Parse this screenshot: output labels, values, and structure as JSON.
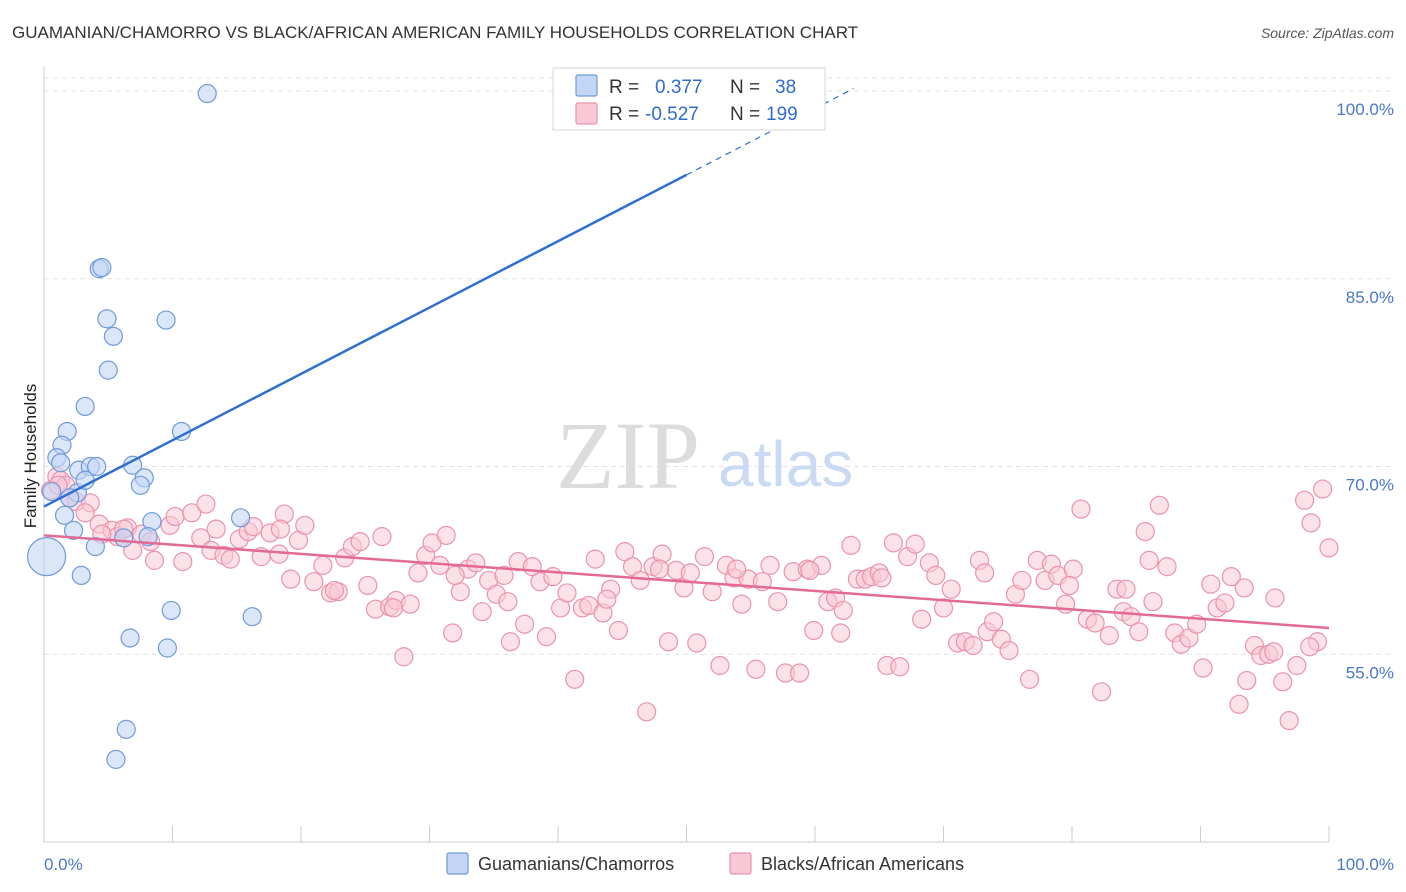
{
  "chart_data": {
    "type": "scatter",
    "title": "GUAMANIAN/CHAMORRO VS BLACK/AFRICAN AMERICAN FAMILY HOUSEHOLDS CORRELATION CHART",
    "source": "Source: ZipAtlas.com",
    "ylabel": "Family Households",
    "xlim": [
      0,
      100
    ],
    "ylim": [
      40,
      102
    ],
    "y_ticks": [
      {
        "value": 100,
        "label": "100.0%"
      },
      {
        "value": 85,
        "label": "85.0%"
      },
      {
        "value": 70,
        "label": "70.0%"
      },
      {
        "value": 55,
        "label": "55.0%"
      }
    ],
    "x_tick_labels": {
      "left": "0.0%",
      "right": "100.0%"
    },
    "watermark": {
      "zip": "ZIP",
      "atlas": "atlas"
    },
    "legend": {
      "rows": [
        {
          "r_label": "R =",
          "r_value": "0.377",
          "n_label": "N =",
          "n_value": "38"
        },
        {
          "r_label": "R =",
          "r_value": "-0.527",
          "n_label": "N =",
          "n_value": "199"
        }
      ]
    },
    "colors": {
      "guam_fill": "#c3d6f5",
      "guam_stroke": "#6f9bd8",
      "guam_line": "#2e6fd0",
      "black_fill": "#f8c8d6",
      "black_stroke": "#ea93ae",
      "black_line": "#e26a93",
      "grid": "#e3e3e3",
      "axis": "#cccccc"
    },
    "series": [
      {
        "name": "Guamanians/Chamorros",
        "trend": {
          "x0": 0,
          "y0": 66.8,
          "x1": 50,
          "y1": 93.3,
          "dash_to_x": 63,
          "dash_to_y": 100.2
        },
        "points": [
          [
            12.7,
            99.8
          ],
          [
            4.3,
            85.8
          ],
          [
            4.5,
            85.9
          ],
          [
            4.9,
            81.8
          ],
          [
            5.4,
            80.4
          ],
          [
            9.5,
            81.7
          ],
          [
            5.0,
            77.7
          ],
          [
            3.2,
            74.8
          ],
          [
            10.7,
            72.8
          ],
          [
            1.8,
            72.8
          ],
          [
            1.4,
            71.7
          ],
          [
            1.0,
            70.7
          ],
          [
            1.3,
            70.3
          ],
          [
            2.7,
            69.7
          ],
          [
            3.6,
            70.0
          ],
          [
            4.1,
            70.0
          ],
          [
            6.9,
            70.1
          ],
          [
            7.8,
            69.1
          ],
          [
            7.5,
            68.5
          ],
          [
            2.6,
            67.9
          ],
          [
            0.6,
            68.0
          ],
          [
            2.0,
            67.5
          ],
          [
            1.6,
            66.1
          ],
          [
            15.3,
            65.9
          ],
          [
            8.4,
            65.6
          ],
          [
            2.3,
            64.9
          ],
          [
            6.2,
            64.3
          ],
          [
            4.0,
            63.6
          ],
          [
            0.2,
            62.8
          ],
          [
            2.9,
            61.3
          ],
          [
            9.9,
            58.5
          ],
          [
            16.2,
            58.0
          ],
          [
            6.7,
            56.3
          ],
          [
            9.6,
            55.5
          ],
          [
            6.4,
            49.0
          ],
          [
            5.6,
            46.6
          ],
          [
            3.2,
            68.9
          ],
          [
            8.1,
            64.4
          ]
        ],
        "big_point": [
          0.2,
          62.8
        ]
      },
      {
        "name": "Blacks/African Americans",
        "trend": {
          "x0": 0,
          "y0": 64.5,
          "x1": 100,
          "y1": 57.1
        },
        "points": [
          [
            1.0,
            69.2
          ],
          [
            1.3,
            68.9
          ],
          [
            1.7,
            68.5
          ],
          [
            2.0,
            67.5
          ],
          [
            2.5,
            67.2
          ],
          [
            3.6,
            67.1
          ],
          [
            3.2,
            66.3
          ],
          [
            4.3,
            65.4
          ],
          [
            5.3,
            64.9
          ],
          [
            5.7,
            64.4
          ],
          [
            6.5,
            65.1
          ],
          [
            6.9,
            63.3
          ],
          [
            7.6,
            64.6
          ],
          [
            8.3,
            64.0
          ],
          [
            8.6,
            62.5
          ],
          [
            9.8,
            65.3
          ],
          [
            10.2,
            66.0
          ],
          [
            10.8,
            62.4
          ],
          [
            11.5,
            66.3
          ],
          [
            12.2,
            64.3
          ],
          [
            12.6,
            67.0
          ],
          [
            13.0,
            63.3
          ],
          [
            13.4,
            65.0
          ],
          [
            14.0,
            62.9
          ],
          [
            14.5,
            62.6
          ],
          [
            15.2,
            64.2
          ],
          [
            15.9,
            64.8
          ],
          [
            16.3,
            65.2
          ],
          [
            16.9,
            62.8
          ],
          [
            17.6,
            64.7
          ],
          [
            18.3,
            63.0
          ],
          [
            18.7,
            66.2
          ],
          [
            19.2,
            61.0
          ],
          [
            19.8,
            64.1
          ],
          [
            20.3,
            65.3
          ],
          [
            21.0,
            60.8
          ],
          [
            21.7,
            62.1
          ],
          [
            22.3,
            59.9
          ],
          [
            22.9,
            60.0
          ],
          [
            23.4,
            62.7
          ],
          [
            24.0,
            63.6
          ],
          [
            24.6,
            64.0
          ],
          [
            25.2,
            60.5
          ],
          [
            25.8,
            58.6
          ],
          [
            26.3,
            64.4
          ],
          [
            26.9,
            58.8
          ],
          [
            27.4,
            59.3
          ],
          [
            28.0,
            54.8
          ],
          [
            28.5,
            59.0
          ],
          [
            29.1,
            61.5
          ],
          [
            29.7,
            62.9
          ],
          [
            30.2,
            63.9
          ],
          [
            30.8,
            62.1
          ],
          [
            31.3,
            64.5
          ],
          [
            31.8,
            56.7
          ],
          [
            32.4,
            60.0
          ],
          [
            33.0,
            61.8
          ],
          [
            33.6,
            62.3
          ],
          [
            34.1,
            58.4
          ],
          [
            34.6,
            60.9
          ],
          [
            35.2,
            59.8
          ],
          [
            35.8,
            61.3
          ],
          [
            36.3,
            56.0
          ],
          [
            36.9,
            62.4
          ],
          [
            37.4,
            57.4
          ],
          [
            38.0,
            62.0
          ],
          [
            38.6,
            60.8
          ],
          [
            39.1,
            56.4
          ],
          [
            39.6,
            61.2
          ],
          [
            40.2,
            58.7
          ],
          [
            40.7,
            59.9
          ],
          [
            41.3,
            53.0
          ],
          [
            41.9,
            58.7
          ],
          [
            42.4,
            58.9
          ],
          [
            42.9,
            62.6
          ],
          [
            43.5,
            58.3
          ],
          [
            44.1,
            60.2
          ],
          [
            44.7,
            56.9
          ],
          [
            45.2,
            63.2
          ],
          [
            45.8,
            62.0
          ],
          [
            46.4,
            60.9
          ],
          [
            46.9,
            50.4
          ],
          [
            47.4,
            62.0
          ],
          [
            48.1,
            63.0
          ],
          [
            48.6,
            56.0
          ],
          [
            49.2,
            61.7
          ],
          [
            49.8,
            60.3
          ],
          [
            50.3,
            61.5
          ],
          [
            50.8,
            55.9
          ],
          [
            51.4,
            62.8
          ],
          [
            52.0,
            60.0
          ],
          [
            52.6,
            54.1
          ],
          [
            53.1,
            62.1
          ],
          [
            53.7,
            61.1
          ],
          [
            54.3,
            59.0
          ],
          [
            54.8,
            61.0
          ],
          [
            55.4,
            53.8
          ],
          [
            55.9,
            60.8
          ],
          [
            56.5,
            62.1
          ],
          [
            57.1,
            59.2
          ],
          [
            57.7,
            53.5
          ],
          [
            58.3,
            61.6
          ],
          [
            58.8,
            53.5
          ],
          [
            59.4,
            61.8
          ],
          [
            59.9,
            56.9
          ],
          [
            60.5,
            62.1
          ],
          [
            61.0,
            59.2
          ],
          [
            61.6,
            59.5
          ],
          [
            62.2,
            58.5
          ],
          [
            62.8,
            63.7
          ],
          [
            63.3,
            61.0
          ],
          [
            63.9,
            61.0
          ],
          [
            64.4,
            61.2
          ],
          [
            65.0,
            61.5
          ],
          [
            65.6,
            54.1
          ],
          [
            66.1,
            63.9
          ],
          [
            66.6,
            54.0
          ],
          [
            67.2,
            62.8
          ],
          [
            67.8,
            63.8
          ],
          [
            68.3,
            57.8
          ],
          [
            68.9,
            62.3
          ],
          [
            69.4,
            61.3
          ],
          [
            70.0,
            58.7
          ],
          [
            70.6,
            60.2
          ],
          [
            71.1,
            55.9
          ],
          [
            71.7,
            56.0
          ],
          [
            72.3,
            55.7
          ],
          [
            72.8,
            62.5
          ],
          [
            73.4,
            56.8
          ],
          [
            73.9,
            57.6
          ],
          [
            74.5,
            56.2
          ],
          [
            75.1,
            55.3
          ],
          [
            75.6,
            59.8
          ],
          [
            76.1,
            60.9
          ],
          [
            76.7,
            53.0
          ],
          [
            77.3,
            62.5
          ],
          [
            77.9,
            60.9
          ],
          [
            78.4,
            62.2
          ],
          [
            78.9,
            61.3
          ],
          [
            79.5,
            59.0
          ],
          [
            80.1,
            61.8
          ],
          [
            80.7,
            66.6
          ],
          [
            81.2,
            57.8
          ],
          [
            81.8,
            57.5
          ],
          [
            82.3,
            52.0
          ],
          [
            82.9,
            56.5
          ],
          [
            83.5,
            60.2
          ],
          [
            84.0,
            58.4
          ],
          [
            84.6,
            58.0
          ],
          [
            85.2,
            56.8
          ],
          [
            85.7,
            64.8
          ],
          [
            86.3,
            59.2
          ],
          [
            86.8,
            66.9
          ],
          [
            87.4,
            62.0
          ],
          [
            88.0,
            56.7
          ],
          [
            88.5,
            55.8
          ],
          [
            89.1,
            56.3
          ],
          [
            89.7,
            57.4
          ],
          [
            90.2,
            53.9
          ],
          [
            90.8,
            60.6
          ],
          [
            91.3,
            58.7
          ],
          [
            91.9,
            59.1
          ],
          [
            92.4,
            61.2
          ],
          [
            93.0,
            51.0
          ],
          [
            93.6,
            52.9
          ],
          [
            94.2,
            55.7
          ],
          [
            94.7,
            54.9
          ],
          [
            95.3,
            55.0
          ],
          [
            95.8,
            59.5
          ],
          [
            96.4,
            52.8
          ],
          [
            96.9,
            49.7
          ],
          [
            97.5,
            54.1
          ],
          [
            98.1,
            67.3
          ],
          [
            98.6,
            65.5
          ],
          [
            99.1,
            56.0
          ],
          [
            0.5,
            68.1
          ],
          [
            1.1,
            68.5
          ],
          [
            4.5,
            64.6
          ],
          [
            6.2,
            65.0
          ],
          [
            18.4,
            65.0
          ],
          [
            22.6,
            60.1
          ],
          [
            27.2,
            58.7
          ],
          [
            32.0,
            61.3
          ],
          [
            36.1,
            59.2
          ],
          [
            43.8,
            59.4
          ],
          [
            47.9,
            61.8
          ],
          [
            53.9,
            61.8
          ],
          [
            59.6,
            61.7
          ],
          [
            65.2,
            61.1
          ],
          [
            73.2,
            61.5
          ],
          [
            79.8,
            60.5
          ],
          [
            86.0,
            62.5
          ],
          [
            93.4,
            60.3
          ],
          [
            98.5,
            55.6
          ],
          [
            99.5,
            68.2
          ],
          [
            100.0,
            63.5
          ],
          [
            95.7,
            55.2
          ],
          [
            84.2,
            60.2
          ],
          [
            62.0,
            56.7
          ]
        ]
      }
    ],
    "bottom_legend": [
      {
        "label": "Guamanians/Chamorros"
      },
      {
        "label": "Blacks/African Americans"
      }
    ]
  }
}
